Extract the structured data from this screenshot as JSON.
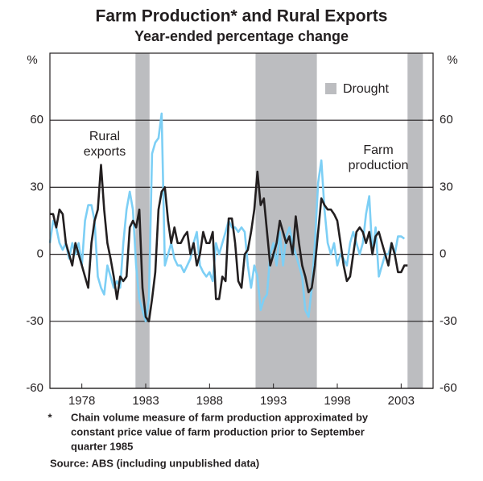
{
  "chart_data": {
    "type": "line",
    "title": "Farm Production* and Rural Exports",
    "subtitle": "Year-ended percentage change",
    "y_unit": "%",
    "y2_unit": "%",
    "xlim": [
      1975.5,
      2005.5
    ],
    "xticks": [
      1978,
      1983,
      1988,
      1993,
      1998,
      2003
    ],
    "ylim": [
      -60,
      90
    ],
    "yticks": [
      -60,
      -30,
      0,
      30,
      60
    ],
    "y2lim": [
      -60,
      90
    ],
    "y2ticks": [
      -60,
      -30,
      0,
      30,
      60
    ],
    "grid": true,
    "shaded_periods": {
      "name": "Drought",
      "color": "#bcbdc0",
      "ranges": [
        [
          1982.2,
          1983.3
        ],
        [
          1991.6,
          1996.4
        ],
        [
          2003.5,
          2004.7
        ]
      ]
    },
    "legend": "top-right",
    "annotations": [
      [
        "Rural",
        "exports"
      ],
      [
        "Farm",
        "production"
      ]
    ],
    "x": [
      1975.5,
      1975.75,
      1976,
      1976.25,
      1976.5,
      1976.75,
      1977,
      1977.25,
      1977.5,
      1977.75,
      1978,
      1978.25,
      1978.5,
      1978.75,
      1979,
      1979.25,
      1979.5,
      1979.75,
      1980,
      1980.25,
      1980.5,
      1980.75,
      1981,
      1981.25,
      1981.5,
      1981.75,
      1982,
      1982.25,
      1982.5,
      1982.75,
      1983,
      1983.25,
      1983.5,
      1983.75,
      1984,
      1984.25,
      1984.5,
      1984.75,
      1985,
      1985.25,
      1985.5,
      1985.75,
      1986,
      1986.25,
      1986.5,
      1986.75,
      1987,
      1987.25,
      1987.5,
      1987.75,
      1988,
      1988.25,
      1988.5,
      1988.75,
      1989,
      1989.25,
      1989.5,
      1989.75,
      1990,
      1990.25,
      1990.5,
      1990.75,
      1991,
      1991.25,
      1991.5,
      1991.75,
      1992,
      1992.25,
      1992.5,
      1992.75,
      1993,
      1993.25,
      1993.5,
      1993.75,
      1994,
      1994.25,
      1994.5,
      1994.75,
      1995,
      1995.25,
      1995.5,
      1995.75,
      1996,
      1996.25,
      1996.5,
      1996.75,
      1997,
      1997.25,
      1997.5,
      1997.75,
      1998,
      1998.25,
      1998.5,
      1998.75,
      1999,
      1999.25,
      1999.5,
      1999.75,
      2000,
      2000.25,
      2000.5,
      2000.75,
      2001,
      2001.25,
      2001.5,
      2001.75,
      2002,
      2002.25,
      2002.5,
      2002.75,
      2003,
      2003.25,
      2003.5
    ],
    "series": [
      {
        "name": "Rural exports",
        "color": "#231f20",
        "values": [
          18,
          18,
          12,
          20,
          18,
          5,
          0,
          -5,
          5,
          0,
          -5,
          -10,
          -15,
          5,
          15,
          20,
          40,
          20,
          5,
          -2,
          -10,
          -20,
          -10,
          -12,
          -10,
          12,
          15,
          12,
          20,
          -15,
          -28,
          -30,
          -20,
          -8,
          20,
          28,
          30,
          15,
          5,
          12,
          5,
          5,
          8,
          10,
          0,
          5,
          -5,
          0,
          10,
          5,
          5,
          10,
          -20,
          -20,
          -10,
          -12,
          16,
          16,
          5,
          -12,
          -15,
          0,
          2,
          10,
          20,
          37,
          22,
          25,
          10,
          -5,
          0,
          5,
          15,
          10,
          5,
          8,
          0,
          17,
          5,
          -5,
          -10,
          -17,
          -15,
          -5,
          10,
          25,
          22,
          20,
          20,
          18,
          15,
          5,
          -5,
          -12,
          -10,
          0,
          10,
          12,
          10,
          5,
          10,
          0,
          8,
          10,
          5,
          0,
          -5,
          5,
          0,
          -8,
          -8,
          -5,
          -5
        ]
      },
      {
        "name": "Farm production",
        "color": "#7dcff5",
        "values": [
          5,
          15,
          12,
          5,
          2,
          5,
          -2,
          5,
          0,
          5,
          -5,
          15,
          22,
          22,
          15,
          -10,
          -15,
          -18,
          -5,
          -10,
          -15,
          -12,
          -15,
          5,
          20,
          28,
          20,
          -5,
          -20,
          -25,
          -30,
          -20,
          45,
          50,
          52,
          63,
          -5,
          0,
          5,
          -2,
          -5,
          -5,
          -8,
          -5,
          -2,
          5,
          10,
          -5,
          -8,
          -10,
          -8,
          -12,
          5,
          0,
          5,
          10,
          15,
          12,
          12,
          10,
          12,
          10,
          -5,
          -15,
          -5,
          -10,
          -25,
          -20,
          -18,
          0,
          5,
          -5,
          10,
          -5,
          8,
          12,
          5,
          0,
          -5,
          -10,
          -25,
          -28,
          -15,
          5,
          32,
          42,
          20,
          5,
          0,
          5,
          -5,
          0,
          -2,
          -5,
          5,
          10,
          5,
          0,
          5,
          18,
          26,
          0,
          12,
          -10,
          -5,
          0,
          0,
          5,
          0,
          8,
          8,
          7,
          null
        ]
      }
    ],
    "footnote": {
      "marker": "*",
      "lines": [
        "Chain volume measure of farm production approximated by",
        "constant price value of farm production prior to September",
        "quarter 1985"
      ]
    },
    "source": "Source: ABS (including unpublished data)"
  }
}
